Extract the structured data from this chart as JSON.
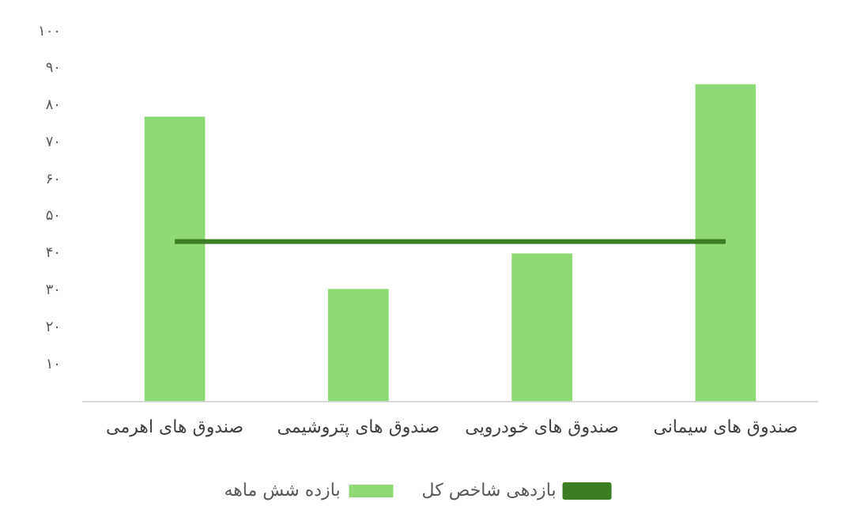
{
  "chart_data": {
    "type": "bar",
    "categories": [
      "صندوق های اهرمی",
      "صندوق های پتروشیمی",
      "صندوق های خودرویی",
      "صندوق های سیمانی"
    ],
    "series": [
      {
        "name": "بازده شش ماهه",
        "color": "#8fd974",
        "values": [
          77,
          30.4,
          40,
          85.8
        ]
      },
      {
        "name": "بازدهی شاخص کل",
        "type": "line",
        "color": "#3a7d22",
        "values": [
          43.2,
          43.2,
          43.2,
          43.2
        ],
        "marker": "none"
      }
    ],
    "ylim": [
      0,
      100
    ],
    "yticks": [
      {
        "value": 10,
        "label": "۱۰"
      },
      {
        "value": 20,
        "label": "۲۰"
      },
      {
        "value": 30,
        "label": "۳۰"
      },
      {
        "value": 40,
        "label": "۴۰"
      },
      {
        "value": 50,
        "label": "۵۰"
      },
      {
        "value": 60,
        "label": "۶۰"
      },
      {
        "value": 70,
        "label": "۷۰"
      },
      {
        "value": 80,
        "label": "۸۰"
      },
      {
        "value": 90,
        "label": "۹۰"
      },
      {
        "value": 100,
        "label": "۱۰۰"
      }
    ],
    "grid": false,
    "legend": "bottom"
  }
}
